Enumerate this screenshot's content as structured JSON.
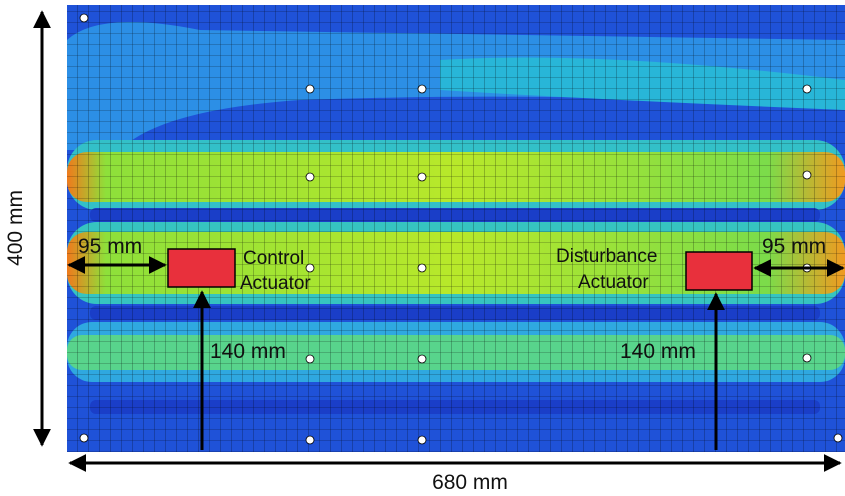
{
  "dimensions": {
    "height": "400 mm",
    "width": "680 mm",
    "control_offset_x": "95 mm",
    "disturbance_offset_x": "95 mm",
    "control_offset_y": "140 mm",
    "disturbance_offset_y": "140 mm"
  },
  "actuators": [
    {
      "label": [
        "Control",
        "Actuator"
      ]
    },
    {
      "label": [
        "Disturbance",
        "Actuator"
      ]
    }
  ]
}
